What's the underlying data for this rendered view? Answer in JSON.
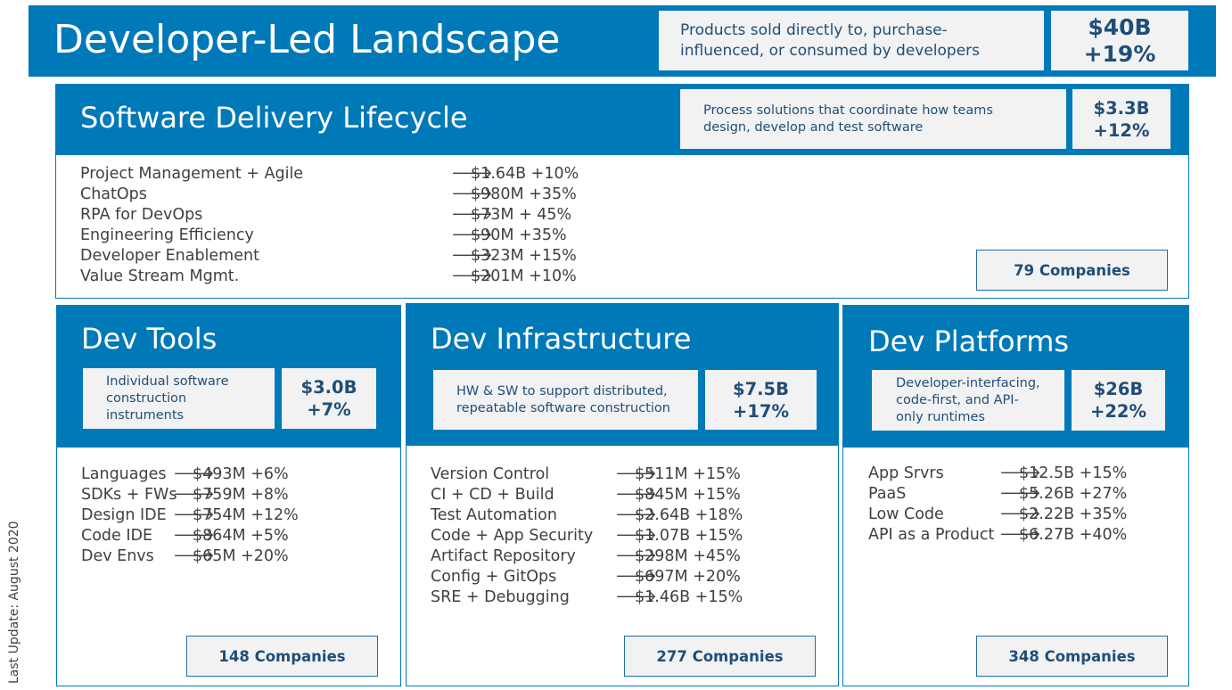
{
  "header": {
    "title": "Developer-Led Landscape",
    "description": "Products sold directly to, purchase-influenced, or consumed by developers",
    "amount": "$40B",
    "growth": "+19%"
  },
  "sdlc": {
    "title": "Software Delivery Lifecycle",
    "description": "Process solutions that coordinate how teams design, develop and test software",
    "amount": "$3.3B",
    "growth": "+12%",
    "items": [
      {
        "label": "Project Management + Agile",
        "value": "$1.64B +10%"
      },
      {
        "label": "ChatOps",
        "value": "$980M +35%"
      },
      {
        "label": "RPA for DevOps",
        "value": "$73M + 45%"
      },
      {
        "label": "Engineering Efficiency",
        "value": "$90M +35%"
      },
      {
        "label": "Developer Enablement",
        "value": "$323M +15%"
      },
      {
        "label": "Value Stream Mgmt.",
        "value": "$201M +10%"
      }
    ],
    "companies": "79 Companies"
  },
  "dev_tools": {
    "title": "Dev Tools",
    "description": "Individual software construction instruments",
    "amount": "$3.0B",
    "growth": "+7%",
    "items": [
      {
        "label": "Languages",
        "value": "$493M +6%"
      },
      {
        "label": "SDKs + FWs",
        "value": "$759M +8%"
      },
      {
        "label": "Design IDE",
        "value": "$754M +12%"
      },
      {
        "label": "Code IDE",
        "value": "$864M +5%"
      },
      {
        "label": "Dev Envs",
        "value": "$65M +20%"
      }
    ],
    "companies": "148 Companies"
  },
  "dev_infra": {
    "title": "Dev Infrastructure",
    "description": "HW & SW to support distributed, repeatable software construction",
    "amount": "$7.5B",
    "growth": "+17%",
    "items": [
      {
        "label": "Version Control",
        "value": "$511M +15%"
      },
      {
        "label": "CI + CD + Build",
        "value": "$845M +15%"
      },
      {
        "label": "Test Automation",
        "value": "$2.64B +18%"
      },
      {
        "label": "Code + App Security",
        "value": "$1.07B +15%"
      },
      {
        "label": "Artifact Repository",
        "value": "$298M +45%"
      },
      {
        "label": "Config + GitOps",
        "value": "$697M +20%"
      },
      {
        "label": "SRE + Debugging",
        "value": "$1.46B +15%"
      }
    ],
    "companies": "277 Companies"
  },
  "dev_platforms": {
    "title": "Dev Platforms",
    "description": "Developer-interfacing, code-first, and API-only runtimes",
    "amount": "$26B",
    "growth": "+22%",
    "items": [
      {
        "label": "App Srvrs",
        "value": "$12.5B +15%"
      },
      {
        "label": "PaaS",
        "value": "$5.26B +27%"
      },
      {
        "label": "Low Code",
        "value": "$2.22B +35%"
      },
      {
        "label": "API as a Product",
        "value": "$6.27B +40%"
      }
    ],
    "companies": "348 Companies"
  },
  "footer": {
    "last_update": "Last Update: August 2020"
  },
  "icons": {
    "arrow": "arrow-right-icon"
  },
  "colors": {
    "brand_blue": "#0079b8",
    "panel_grey": "#f2f2f2",
    "text_dark_blue": "#1f4e79"
  }
}
